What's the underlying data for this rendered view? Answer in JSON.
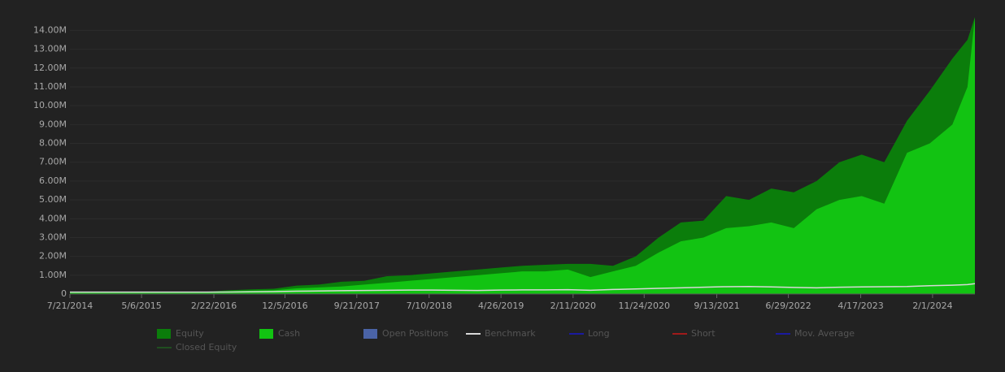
{
  "chart_data": {
    "type": "area",
    "x": [
      "2014-07-21",
      "2014-10-21",
      "2015-01-21",
      "2015-04-21",
      "2015-07-21",
      "2015-10-21",
      "2016-01-21",
      "2016-04-21",
      "2016-07-21",
      "2016-10-21",
      "2017-01-21",
      "2017-04-21",
      "2017-07-21",
      "2017-10-21",
      "2018-01-21",
      "2018-04-21",
      "2018-07-21",
      "2018-10-21",
      "2019-01-21",
      "2019-04-21",
      "2019-07-21",
      "2019-10-21",
      "2020-01-21",
      "2020-04-21",
      "2020-07-21",
      "2020-10-21",
      "2021-01-21",
      "2021-04-21",
      "2021-07-21",
      "2021-10-21",
      "2022-01-21",
      "2022-04-21",
      "2022-07-21",
      "2022-10-21",
      "2023-01-21",
      "2023-04-21",
      "2023-07-21",
      "2023-10-21",
      "2024-01-21",
      "2024-04-21",
      "2024-06-21",
      "2024-07-21"
    ],
    "series": [
      {
        "name": "Equity",
        "color": "#0b7d0b",
        "kind": "area",
        "values": [
          100000,
          100000,
          100000,
          100000,
          100000,
          100000,
          120000,
          200000,
          250000,
          280000,
          450000,
          500000,
          650000,
          700000,
          950000,
          1000000,
          1100000,
          1200000,
          1300000,
          1400000,
          1500000,
          1550000,
          1600000,
          1600000,
          1500000,
          2000000,
          3000000,
          3800000,
          3900000,
          5200000,
          5000000,
          5600000,
          5400000,
          6000000,
          7000000,
          7400000,
          7000000,
          9200000,
          10800000,
          12500000,
          13500000,
          14700000
        ]
      },
      {
        "name": "Cash",
        "color": "#12c312",
        "kind": "area",
        "values": [
          100000,
          100000,
          100000,
          100000,
          100000,
          100000,
          110000,
          150000,
          180000,
          200000,
          300000,
          350000,
          400000,
          500000,
          600000,
          700000,
          800000,
          900000,
          1000000,
          1100000,
          1200000,
          1200000,
          1300000,
          900000,
          1200000,
          1500000,
          2200000,
          2800000,
          3000000,
          3500000,
          3600000,
          3800000,
          3500000,
          4500000,
          5000000,
          5200000,
          4800000,
          7500000,
          8000000,
          9000000,
          11000000,
          14700000
        ]
      },
      {
        "name": "Open Positions",
        "color": "#4a63a6",
        "kind": "swatch"
      },
      {
        "name": "Benchmark",
        "color": "#d8d8d8",
        "kind": "line",
        "values": [
          100000,
          100000,
          100000,
          100000,
          100000,
          100000,
          100000,
          110000,
          120000,
          130000,
          150000,
          160000,
          180000,
          190000,
          200000,
          210000,
          210000,
          200000,
          190000,
          210000,
          220000,
          220000,
          230000,
          200000,
          240000,
          270000,
          300000,
          330000,
          360000,
          390000,
          400000,
          380000,
          350000,
          330000,
          360000,
          380000,
          390000,
          400000,
          440000,
          470000,
          500000,
          550000
        ]
      },
      {
        "name": "Long",
        "color": "#1a1aa0",
        "kind": "line"
      },
      {
        "name": "Short",
        "color": "#a01a1a",
        "kind": "line"
      },
      {
        "name": "Mov. Average",
        "color": "#1a1aa0",
        "kind": "line"
      },
      {
        "name": "Closed Equity",
        "color": "#1f4f1f",
        "kind": "line"
      }
    ],
    "xlim": [
      "2014-07-21",
      "2024-07-21"
    ],
    "xticks": [
      {
        "value": "2014-07-21",
        "label": "7/21/2014"
      },
      {
        "value": "2015-05-06",
        "label": "5/6/2015"
      },
      {
        "value": "2016-02-22",
        "label": "2/22/2016"
      },
      {
        "value": "2016-12-05",
        "label": "12/5/2016"
      },
      {
        "value": "2017-09-21",
        "label": "9/21/2017"
      },
      {
        "value": "2018-07-10",
        "label": "7/10/2018"
      },
      {
        "value": "2019-04-26",
        "label": "4/26/2019"
      },
      {
        "value": "2020-02-11",
        "label": "2/11/2020"
      },
      {
        "value": "2020-11-24",
        "label": "11/24/2020"
      },
      {
        "value": "2021-09-13",
        "label": "9/13/2021"
      },
      {
        "value": "2022-06-29",
        "label": "6/29/2022"
      },
      {
        "value": "2023-04-17",
        "label": "4/17/2023"
      },
      {
        "value": "2024-02-01",
        "label": "2/1/2024"
      }
    ],
    "ylim": [
      0,
      14750000
    ],
    "yticks": [
      0,
      {
        "value": 1000000,
        "label": "1.00M"
      },
      {
        "value": 2000000,
        "label": "2.00M"
      },
      {
        "value": 3000000,
        "label": "3.00M"
      },
      {
        "value": 4000000,
        "label": "4.00M"
      },
      {
        "value": 5000000,
        "label": "5.00M"
      },
      {
        "value": 6000000,
        "label": "6.00M"
      },
      {
        "value": 7000000,
        "label": "7.00M"
      },
      {
        "value": 8000000,
        "label": "8.00M"
      },
      {
        "value": 9000000,
        "label": "9.00M"
      },
      {
        "value": 10000000,
        "label": "10.00M"
      },
      {
        "value": 11000000,
        "label": "11.00M"
      },
      {
        "value": 12000000,
        "label": "12.00M"
      },
      {
        "value": 13000000,
        "label": "13.00M"
      },
      {
        "value": 14000000,
        "label": "14.00M"
      }
    ],
    "grid": true
  }
}
